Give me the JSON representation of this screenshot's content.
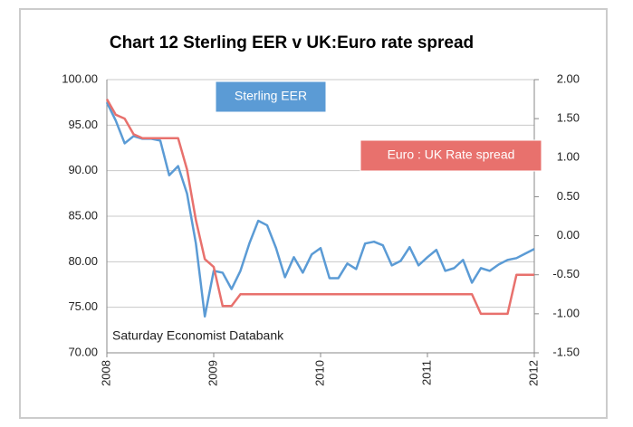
{
  "chart_data": {
    "type": "line",
    "title": "Chart 12 Sterling EER v UK:Euro rate spread",
    "annotation": "Saturday Economist Databank",
    "categories": [
      "2008",
      null,
      null,
      null,
      null,
      null,
      null,
      null,
      null,
      null,
      null,
      null,
      "2009",
      null,
      null,
      null,
      null,
      null,
      null,
      null,
      null,
      null,
      null,
      null,
      "2010",
      null,
      null,
      null,
      null,
      null,
      null,
      null,
      null,
      null,
      null,
      null,
      "2011",
      null,
      null,
      null,
      null,
      null,
      null,
      null,
      null,
      null,
      null,
      null,
      "2012"
    ],
    "series": [
      {
        "name": "Sterling EER",
        "color": "#5b9bd5",
        "axis": "y",
        "values": [
          97.5,
          95.5,
          93,
          93.8,
          93.5,
          93.5,
          93.3,
          89.5,
          90.5,
          87.5,
          82,
          74,
          79,
          78.8,
          77,
          79,
          82,
          84.5,
          84,
          81.5,
          78.3,
          80.5,
          78.8,
          80.8,
          81.5,
          78.2,
          78.2,
          79.8,
          79.2,
          82,
          82.2,
          81.8,
          79.6,
          80.1,
          81.6,
          79.6,
          80.5,
          81.3,
          79,
          79.3,
          80.2,
          77.7,
          79.3,
          79,
          79.7,
          80.2,
          80.4,
          80.9,
          81.4
        ]
      },
      {
        "name": "Euro : UK Rate spread",
        "color": "#e8716d",
        "axis": "y2",
        "values": [
          1.75,
          1.55,
          1.5,
          1.3,
          1.25,
          1.25,
          1.25,
          1.25,
          1.25,
          0.85,
          0.2,
          -0.3,
          -0.4,
          -0.9,
          -0.9,
          -0.75,
          -0.75,
          -0.75,
          -0.75,
          -0.75,
          -0.75,
          -0.75,
          -0.75,
          -0.75,
          -0.75,
          -0.75,
          -0.75,
          -0.75,
          -0.75,
          -0.75,
          -0.75,
          -0.75,
          -0.75,
          -0.75,
          -0.75,
          -0.75,
          -0.75,
          -0.75,
          -0.75,
          -0.75,
          -0.75,
          -0.75,
          -1.0,
          -1.0,
          -1.0,
          -1.0,
          -0.5,
          -0.5,
          -0.5
        ]
      }
    ],
    "ylim": [
      70,
      100
    ],
    "yticks": [
      {
        "value": 70,
        "label": "70.00"
      },
      {
        "value": 75,
        "label": "75.00"
      },
      {
        "value": 80,
        "label": "80.00"
      },
      {
        "value": 85,
        "label": "85.00"
      },
      {
        "value": 90,
        "label": "90.00"
      },
      {
        "value": 95,
        "label": "95.00"
      },
      {
        "value": 100,
        "label": "100.00"
      }
    ],
    "y2lim": [
      -1.5,
      2
    ],
    "y2ticks": [
      {
        "value": -1.5,
        "label": "-1.50"
      },
      {
        "value": -1,
        "label": "-1.00"
      },
      {
        "value": -0.5,
        "label": "-0.50"
      },
      {
        "value": 0,
        "label": "0.00"
      },
      {
        "value": 0.5,
        "label": "0.50"
      },
      {
        "value": 1,
        "label": "1.00"
      },
      {
        "value": 1.5,
        "label": "1.50"
      },
      {
        "value": 2,
        "label": "2.00"
      }
    ],
    "grid": true
  }
}
